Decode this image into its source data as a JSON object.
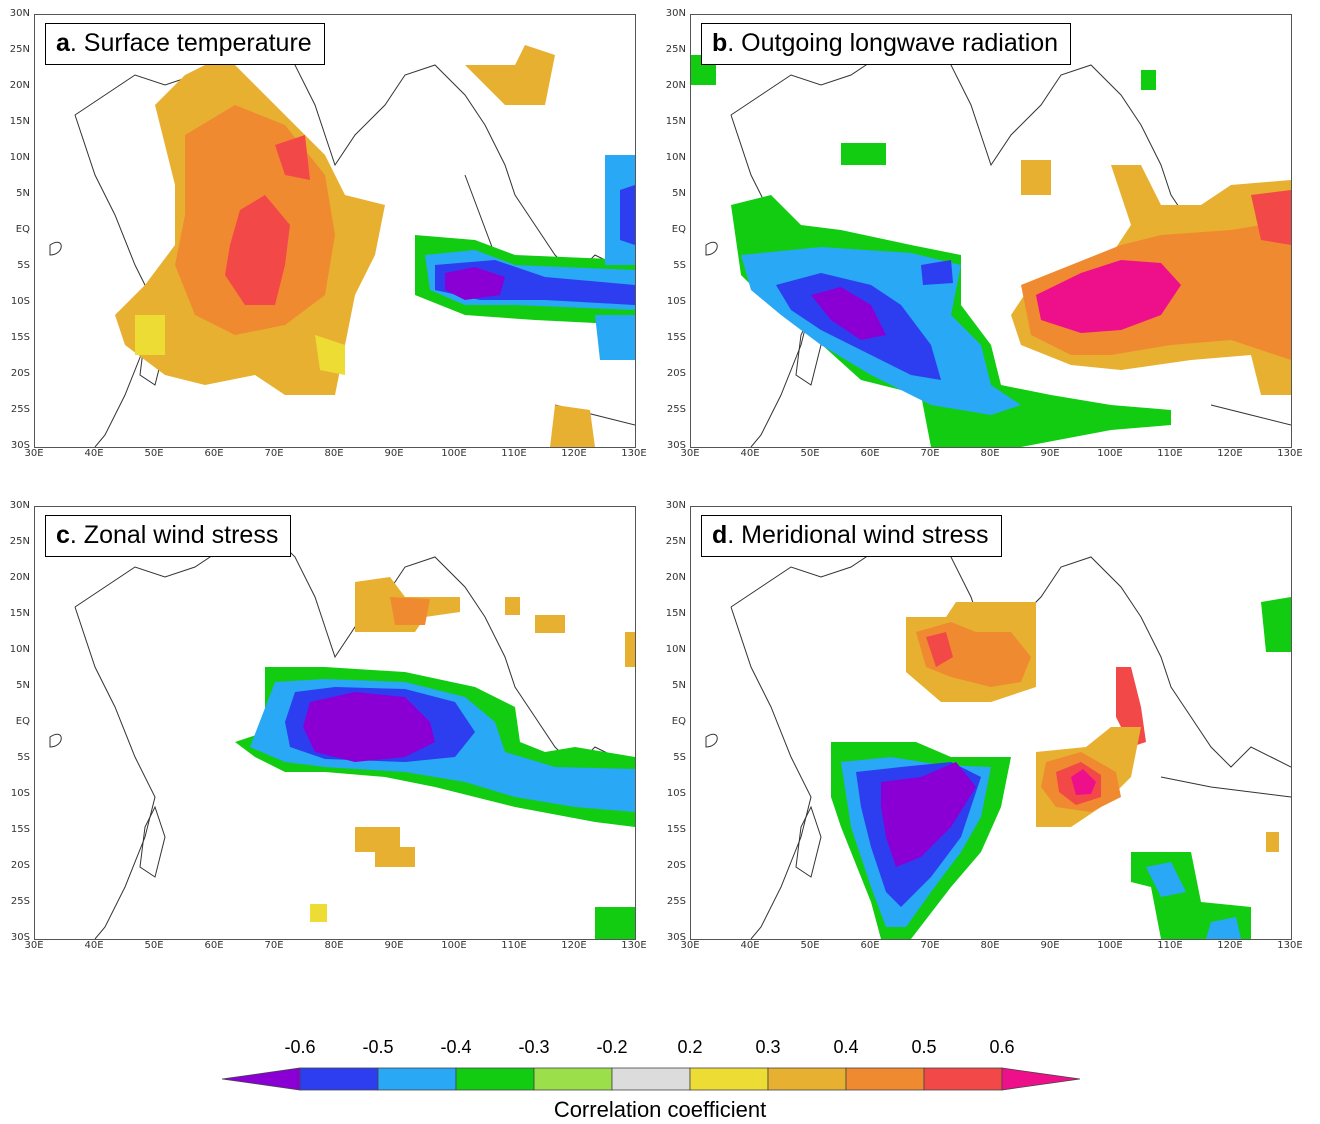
{
  "panels": [
    {
      "letter": "a",
      "title": ". Surface temperature"
    },
    {
      "letter": "b",
      "title": ". Outgoing longwave radiation"
    },
    {
      "letter": "c",
      "title": ". Zonal wind stress"
    },
    {
      "letter": "d",
      "title": ". Meridional wind stress"
    }
  ],
  "lat_labels": [
    "30N",
    "25N",
    "20N",
    "15N",
    "10N",
    "5N",
    "EQ",
    "5S",
    "10S",
    "15S",
    "20S",
    "25S",
    "30S"
  ],
  "lon_labels": [
    "30E",
    "40E",
    "50E",
    "60E",
    "70E",
    "80E",
    "90E",
    "100E",
    "110E",
    "120E",
    "130E"
  ],
  "colorbar": {
    "title": "Correlation coefficient",
    "tick_labels": [
      "-0.6",
      "-0.5",
      "-0.4",
      "-0.3",
      "-0.2",
      "0.2",
      "0.3",
      "0.4",
      "0.5",
      "0.6"
    ],
    "colors": [
      "#8a00d4",
      "#2d3df0",
      "#28a8f5",
      "#12cc12",
      "#9be04a",
      "#dcdcdc",
      "#eddc34",
      "#e8b030",
      "#f08a30",
      "#f24848",
      "#ee0f8a"
    ]
  }
}
